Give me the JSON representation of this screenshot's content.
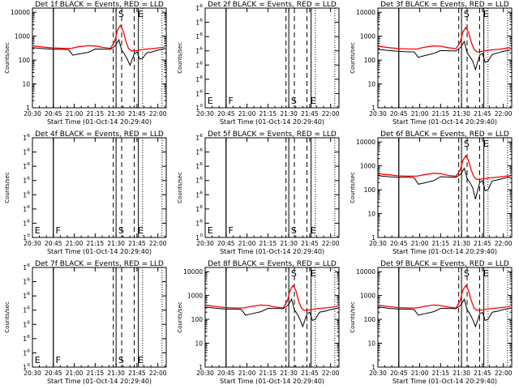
{
  "colors": {
    "events": "#000000",
    "lld": "#ff0000",
    "background": "#ffffff",
    "frame": "#000000"
  },
  "shared": {
    "x_ticks": [
      "20:30",
      "20:45",
      "21:00",
      "21:15",
      "21:30",
      "21:45",
      "22:00"
    ],
    "x_tick_minutes": [
      0,
      15,
      30,
      45,
      60,
      75,
      90
    ],
    "xlim_minutes": [
      0,
      96
    ],
    "x_origin": "20:30",
    "xlabel": "Start Time (01-Oct-14 20:29:40)",
    "ylabel": "Counts/sec",
    "markers": [
      {
        "label": "E",
        "minute": 15,
        "style": "solid"
      },
      {
        "label": "F",
        "minute": 15,
        "style": "solid"
      },
      {
        "label": "S",
        "minute": 60,
        "style": "solid"
      },
      {
        "label": "S",
        "minute": 64,
        "style": "dashed"
      },
      {
        "label": "E",
        "minute": 73,
        "style": "dashed"
      },
      {
        "label": "E",
        "minute": 76,
        "style": "solid"
      },
      {
        "label": "",
        "minute": 79,
        "style": "dotted"
      },
      {
        "label": "",
        "minute": 93,
        "style": "dotted"
      }
    ]
  },
  "chart_data": [
    {
      "type": "line",
      "title": "Det 1f BLACK = Events, RED = LLD",
      "ylabel": "Counts/sec",
      "xlabel": "Start Time (01-Oct-14 20:29:40)",
      "yscale": "log",
      "ylim": [
        1,
        15000
      ],
      "y_ticks": [
        "1",
        "10",
        "100",
        "1000",
        "10000"
      ],
      "markers": [
        "S",
        "E"
      ],
      "empty": false,
      "series": [
        {
          "name": "BLACK = Events",
          "x": [
            0,
            8,
            15,
            22,
            26,
            29,
            33,
            40,
            45,
            56,
            59.5,
            62,
            64,
            66,
            68,
            70,
            73,
            75,
            77,
            79,
            82,
            86,
            90,
            95
          ],
          "y": [
            330,
            300,
            280,
            280,
            270,
            160,
            180,
            210,
            290,
            285,
            400,
            700,
            260,
            180,
            110,
            60,
            180,
            220,
            110,
            120,
            200,
            220,
            260,
            300
          ]
        },
        {
          "name": "RED = LLD",
          "x": [
            0,
            8,
            15,
            22,
            28,
            33,
            40,
            45,
            50,
            56,
            59,
            61,
            63,
            65,
            67,
            69,
            71,
            75,
            80,
            88,
            95
          ],
          "y": [
            400,
            350,
            320,
            310,
            310,
            360,
            400,
            390,
            340,
            310,
            600,
            1800,
            2800,
            1800,
            600,
            300,
            240,
            250,
            280,
            310,
            350
          ]
        }
      ]
    },
    {
      "type": "line",
      "title": "Det 2f BLACK = Events, RED = LLD",
      "ylabel": "Counts/sec",
      "xlabel": "Start Time (01-Oct-14 20:29:40)",
      "yscale": "log",
      "ylim": [
        1,
        1.5
      ],
      "y_ticks": [
        "1",
        "1",
        "1",
        "1",
        "1",
        "1",
        "1",
        "1"
      ],
      "y_tick_exponents": [
        "0",
        "-6",
        "-6",
        "-6",
        "-6",
        "-6",
        "-6",
        "-6"
      ],
      "markers": [
        "E",
        "F",
        "S",
        "E"
      ],
      "empty": true,
      "series": []
    },
    {
      "type": "line",
      "title": "Det 3f BLACK = Events, RED = LLD",
      "ylabel": "Counts/sec",
      "xlabel": "Start Time (01-Oct-14 20:29:40)",
      "yscale": "log",
      "ylim": [
        1,
        15000
      ],
      "y_ticks": [
        "1",
        "10",
        "100",
        "1000",
        "10000"
      ],
      "markers": [
        "S",
        "E"
      ],
      "empty": false,
      "series": [
        {
          "name": "BLACK = Events",
          "x": [
            0,
            8,
            15,
            22,
            26,
            29,
            33,
            40,
            45,
            56,
            59.5,
            62,
            64,
            66,
            68,
            70,
            73,
            75,
            77,
            79,
            82,
            86,
            90,
            95
          ],
          "y": [
            280,
            250,
            230,
            220,
            220,
            130,
            150,
            190,
            250,
            240,
            350,
            600,
            200,
            140,
            90,
            40,
            160,
            190,
            80,
            90,
            170,
            200,
            230,
            260
          ]
        },
        {
          "name": "RED = LLD",
          "x": [
            0,
            8,
            15,
            22,
            28,
            33,
            40,
            45,
            50,
            56,
            59,
            61,
            63,
            65,
            67,
            69,
            71,
            75,
            80,
            88,
            95
          ],
          "y": [
            380,
            330,
            300,
            290,
            290,
            340,
            390,
            380,
            330,
            300,
            550,
            1500,
            2300,
            1500,
            550,
            280,
            220,
            230,
            260,
            290,
            330
          ]
        }
      ]
    },
    {
      "type": "line",
      "title": "Det 4f BLACK = Events, RED = LLD",
      "ylabel": "Counts/sec",
      "xlabel": "Start Time (01-Oct-14 20:29:40)",
      "yscale": "log",
      "ylim": [
        1,
        1.5
      ],
      "y_ticks": [
        "1",
        "1",
        "1",
        "1",
        "1",
        "1",
        "1",
        "1"
      ],
      "y_tick_exponents": [
        "0",
        "-6",
        "-6",
        "-6",
        "-6",
        "-6",
        "-6",
        "-6"
      ],
      "markers": [
        "E",
        "F",
        "S",
        "E"
      ],
      "empty": true,
      "series": []
    },
    {
      "type": "line",
      "title": "Det 5f BLACK = Events, RED = LLD",
      "ylabel": "Counts/sec",
      "xlabel": "Start Time (01-Oct-14 20:29:40)",
      "yscale": "log",
      "ylim": [
        1,
        1.5
      ],
      "y_ticks": [
        "1",
        "1",
        "1",
        "1",
        "1",
        "1",
        "1",
        "1"
      ],
      "y_tick_exponents": [
        "0",
        "-6",
        "-6",
        "-6",
        "-6",
        "-6",
        "-6",
        "-6"
      ],
      "markers": [
        "E",
        "F",
        "S",
        "E"
      ],
      "empty": true,
      "series": []
    },
    {
      "type": "line",
      "title": "Det 6f BLACK = Events, RED = LLD",
      "ylabel": "Counts/sec",
      "xlabel": "Start Time (01-Oct-14 20:29:40)",
      "yscale": "log",
      "ylim": [
        1,
        15000
      ],
      "y_ticks": [
        "1",
        "10",
        "100",
        "1000",
        "10000"
      ],
      "markers": [
        "S",
        "E"
      ],
      "empty": false,
      "series": [
        {
          "name": "BLACK = Events",
          "x": [
            0,
            8,
            15,
            22,
            26,
            29,
            33,
            40,
            45,
            56,
            59.5,
            62,
            64,
            66,
            68,
            70,
            73,
            75,
            77,
            79,
            82,
            86,
            90,
            95
          ],
          "y": [
            390,
            350,
            330,
            330,
            320,
            170,
            190,
            240,
            350,
            330,
            450,
            800,
            300,
            200,
            120,
            40,
            200,
            240,
            90,
            100,
            230,
            260,
            300,
            340
          ]
        },
        {
          "name": "RED = LLD",
          "x": [
            0,
            8,
            15,
            22,
            28,
            33,
            40,
            45,
            50,
            56,
            59,
            61,
            63,
            65,
            67,
            69,
            71,
            75,
            80,
            88,
            95
          ],
          "y": [
            460,
            420,
            380,
            370,
            370,
            420,
            490,
            470,
            400,
            370,
            650,
            1700,
            2600,
            1700,
            650,
            340,
            270,
            280,
            310,
            350,
            390
          ]
        }
      ]
    },
    {
      "type": "line",
      "title": "Det 7f BLACK = Events, RED = LLD",
      "ylabel": "Counts/sec",
      "xlabel": "Start Time (01-Oct-14 20:29:40)",
      "yscale": "log",
      "ylim": [
        1,
        1.5
      ],
      "y_ticks": [
        "1",
        "1",
        "1",
        "1",
        "1",
        "1",
        "1",
        "1"
      ],
      "y_tick_exponents": [
        "0",
        "-6",
        "-6",
        "-6",
        "-6",
        "-6",
        "-6",
        "-6"
      ],
      "markers": [
        "E",
        "F",
        "S",
        "E"
      ],
      "empty": true,
      "series": []
    },
    {
      "type": "line",
      "title": "Det 8f BLACK = Events, RED = LLD",
      "ylabel": "Counts/sec",
      "xlabel": "Start Time (01-Oct-14 20:29:40)",
      "yscale": "log",
      "ylim": [
        1,
        15000
      ],
      "y_ticks": [
        "1",
        "10",
        "100",
        "1000",
        "10000"
      ],
      "markers": [
        "S",
        "E"
      ],
      "empty": false,
      "series": [
        {
          "name": "BLACK = Events",
          "x": [
            0,
            8,
            15,
            22,
            26,
            29,
            33,
            40,
            45,
            56,
            59.5,
            62,
            64,
            66,
            68,
            70,
            73,
            75,
            77,
            79,
            82,
            86,
            90,
            95
          ],
          "y": [
            330,
            290,
            270,
            270,
            260,
            150,
            170,
            210,
            290,
            280,
            400,
            700,
            250,
            170,
            100,
            50,
            170,
            200,
            90,
            100,
            200,
            220,
            260,
            290
          ]
        },
        {
          "name": "RED = LLD",
          "x": [
            0,
            8,
            15,
            22,
            28,
            33,
            40,
            45,
            50,
            56,
            59,
            61,
            63,
            65,
            67,
            69,
            71,
            75,
            80,
            88,
            95
          ],
          "y": [
            400,
            340,
            310,
            300,
            300,
            350,
            400,
            380,
            330,
            300,
            600,
            1700,
            2600,
            1700,
            600,
            300,
            240,
            250,
            280,
            310,
            350
          ]
        }
      ]
    },
    {
      "type": "line",
      "title": "Det 9f BLACK = Events, RED = LLD",
      "ylabel": "Counts/sec",
      "xlabel": "Start Time (01-Oct-14 20:29:40)",
      "yscale": "log",
      "ylim": [
        1,
        15000
      ],
      "y_ticks": [
        "1",
        "10",
        "100",
        "1000",
        "10000"
      ],
      "markers": [
        "S",
        "E"
      ],
      "empty": false,
      "series": [
        {
          "name": "BLACK = Events",
          "x": [
            0,
            8,
            15,
            22,
            26,
            29,
            33,
            40,
            45,
            56,
            59.5,
            62,
            64,
            66,
            68,
            70,
            73,
            75,
            77,
            79,
            82,
            86,
            90,
            95
          ],
          "y": [
            330,
            290,
            270,
            270,
            260,
            150,
            170,
            210,
            290,
            280,
            400,
            700,
            250,
            170,
            100,
            50,
            170,
            200,
            90,
            100,
            200,
            220,
            260,
            290
          ]
        },
        {
          "name": "RED = LLD",
          "x": [
            0,
            8,
            15,
            22,
            28,
            33,
            40,
            45,
            50,
            56,
            59,
            61,
            63,
            65,
            67,
            69,
            71,
            75,
            80,
            88,
            95
          ],
          "y": [
            390,
            340,
            310,
            300,
            300,
            350,
            400,
            380,
            330,
            300,
            600,
            1700,
            2600,
            1700,
            600,
            300,
            240,
            250,
            280,
            310,
            350
          ]
        }
      ]
    }
  ]
}
